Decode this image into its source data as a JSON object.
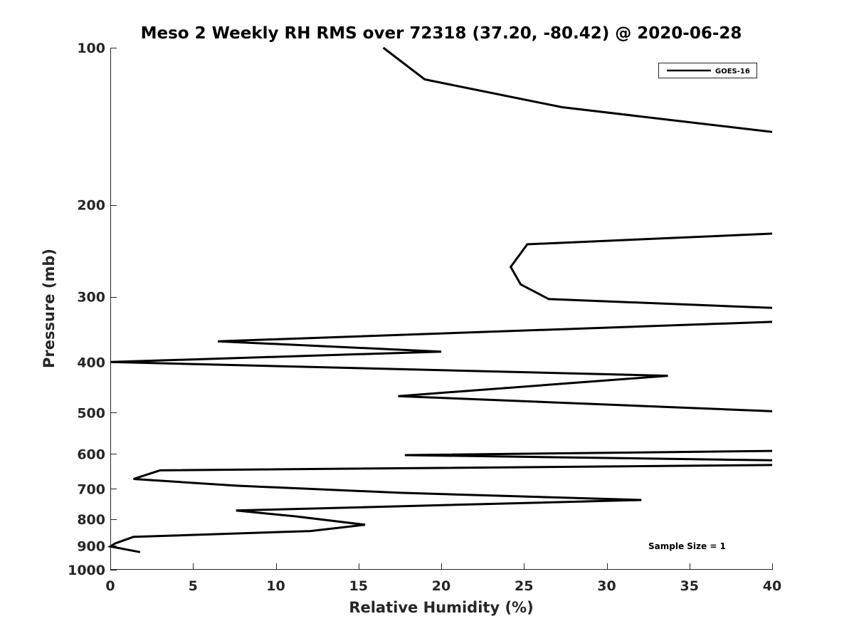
{
  "chart_data": {
    "type": "line",
    "title": "Meso 2 Weekly RH RMS over 72318 (37.20, -80.42) @ 2020-06-28",
    "xlabel": "Relative Humidity (%)",
    "ylabel": "Pressure (mb)",
    "xlim": [
      0,
      40
    ],
    "ylim": [
      1000,
      100
    ],
    "y_scale": "log",
    "y_reversed": true,
    "grid": false,
    "legend_position": "top-right",
    "x_ticks": [
      "0",
      "5",
      "10",
      "15",
      "20",
      "25",
      "30",
      "35",
      "40"
    ],
    "y_ticks": [
      "100",
      "200",
      "300",
      "400",
      "500",
      "600",
      "700",
      "800",
      "900",
      "1000"
    ],
    "series": [
      {
        "name": "GOES-16",
        "color": "#000000",
        "points": [
          {
            "x": 16.5,
            "y": 100
          },
          {
            "x": 19.0,
            "y": 115
          },
          {
            "x": 27.3,
            "y": 130
          },
          {
            "x": 40.0,
            "y": 145
          },
          {
            "x": null,
            "y": null
          },
          {
            "x": 40.0,
            "y": 227
          },
          {
            "x": 25.2,
            "y": 238
          },
          {
            "x": 24.2,
            "y": 263
          },
          {
            "x": 24.8,
            "y": 284
          },
          {
            "x": 26.5,
            "y": 303
          },
          {
            "x": 40.0,
            "y": 315
          },
          {
            "x": null,
            "y": null
          },
          {
            "x": 40.0,
            "y": 335
          },
          {
            "x": 6.5,
            "y": 365
          },
          {
            "x": 20.0,
            "y": 382
          },
          {
            "x": 0.0,
            "y": 400
          },
          {
            "x": 33.7,
            "y": 425
          },
          {
            "x": 17.4,
            "y": 465
          },
          {
            "x": 40.0,
            "y": 497
          },
          {
            "x": null,
            "y": null
          },
          {
            "x": 40.0,
            "y": 592
          },
          {
            "x": 17.8,
            "y": 603
          },
          {
            "x": 40.0,
            "y": 617
          },
          {
            "x": null,
            "y": null
          },
          {
            "x": 40.0,
            "y": 630
          },
          {
            "x": 3.0,
            "y": 645
          },
          {
            "x": 1.4,
            "y": 670
          },
          {
            "x": 7.6,
            "y": 690
          },
          {
            "x": 17.5,
            "y": 712
          },
          {
            "x": 32.1,
            "y": 735
          },
          {
            "x": 7.6,
            "y": 770
          },
          {
            "x": 11.2,
            "y": 790
          },
          {
            "x": 15.4,
            "y": 820
          },
          {
            "x": 12.1,
            "y": 843
          },
          {
            "x": 1.4,
            "y": 865
          },
          {
            "x": 0.3,
            "y": 890
          },
          {
            "x": 0.0,
            "y": 902
          },
          {
            "x": 1.8,
            "y": 925
          }
        ]
      }
    ],
    "annotation": "Sample Size = 1"
  }
}
